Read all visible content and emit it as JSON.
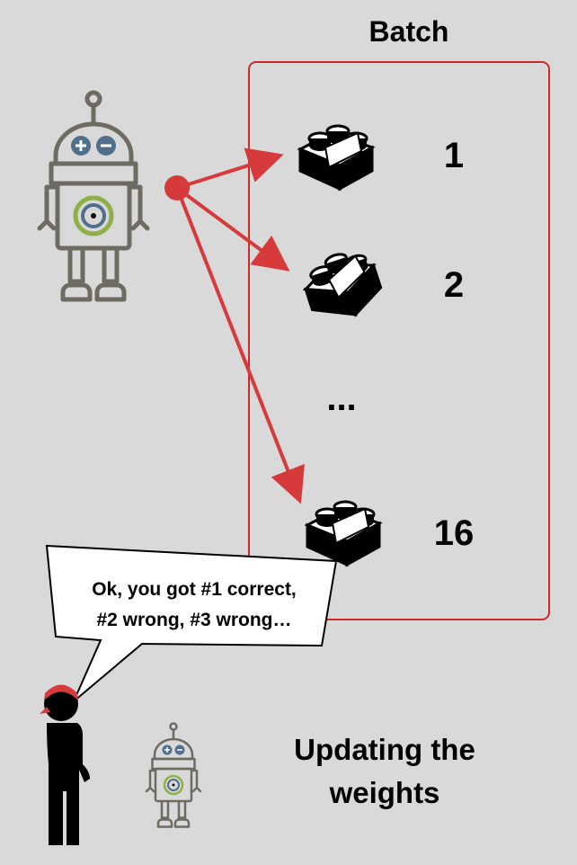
{
  "batch": {
    "title": "Batch",
    "items": [
      {
        "label": "1",
        "icon": "lego-brick-icon"
      },
      {
        "label": "2",
        "icon": "lego-brick-icon"
      },
      {
        "label": "16",
        "icon": "lego-brick-icon"
      }
    ],
    "ellipsis": "..."
  },
  "speech": {
    "line1": "Ok, you got #1 correct,",
    "line2": "#2 wrong, #3 wrong…"
  },
  "caption": {
    "line1": "Updating the",
    "line2": "weights"
  },
  "colors": {
    "background": "#d9d9d9",
    "frame": "#cc2a2a",
    "arrow": "#d63a3a",
    "robot_outline": "#6e6b62",
    "robot_eye": "#4f6f8a",
    "robot_ring": "#8fb048"
  }
}
